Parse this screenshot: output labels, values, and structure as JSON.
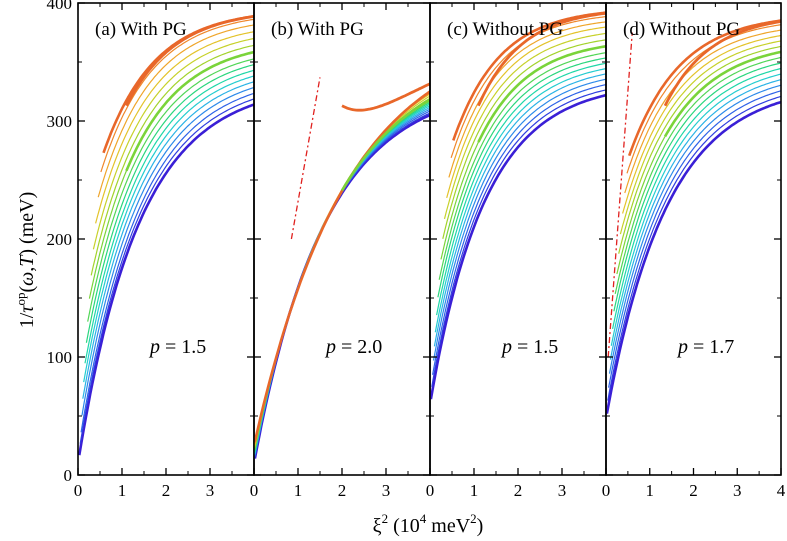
{
  "chart_data": {
    "type": "line",
    "xlabel": "ξ² (10⁴ meV²)",
    "ylabel": "1/τ^op(ω,T) (meV)",
    "xlabel_parts": {
      "base": "ξ",
      "sup": "2",
      "rest": " (10",
      "sup2": "4",
      "rest2": " meV",
      "sup3": "2",
      "end": ")"
    },
    "ylabel_parts": {
      "a": "1/",
      "tau": "τ",
      "sup": "op",
      "b": "(",
      "omega": "ω",
      "comma": ",",
      "T": "T",
      "c": ") (meV)"
    },
    "ylim": [
      0,
      400
    ],
    "yticks": [
      "0",
      "100",
      "200",
      "300",
      "400"
    ],
    "panels": [
      {
        "id": "a",
        "label": "(a) With PG",
        "param_symbol": "p",
        "param_eq": " = 1.5",
        "xlim": [
          0,
          4
        ],
        "xticks": [
          "0",
          "1",
          "2",
          "3"
        ],
        "offsets": [
          10,
          15,
          20,
          30,
          40,
          50,
          60,
          72,
          85,
          98,
          112,
          128,
          145,
          162,
          180,
          193
        ],
        "plateaus": [
          332,
          336,
          340,
          344,
          348,
          352,
          356,
          360,
          364,
          369,
          374,
          379,
          384,
          389,
          393,
          395
        ],
        "rates": [
          0.72,
          0.73,
          0.74,
          0.75,
          0.76,
          0.77,
          0.78,
          0.79,
          0.8,
          0.81,
          0.82,
          0.83,
          0.84,
          0.85,
          0.86,
          0.87
        ],
        "starts": [
          0.03,
          0.05,
          0.07,
          0.09,
          0.11,
          0.13,
          0.16,
          0.19,
          0.22,
          0.26,
          0.3,
          0.35,
          0.4,
          0.46,
          0.52,
          0.58
        ],
        "bold_start": 1.1,
        "bold_value_at_start": 313,
        "dashdot": null
      },
      {
        "id": "b",
        "label": "(b) With PG",
        "param_symbol": "p",
        "param_eq": " = 2.0",
        "xlim": [
          0,
          4
        ],
        "xticks": [
          "0",
          "1",
          "2",
          "3"
        ],
        "offsets": [
          10,
          11,
          12,
          13,
          14,
          15,
          16,
          17,
          18,
          19,
          20,
          21,
          22,
          23,
          24,
          25
        ],
        "plateaus": [
          332,
          335,
          338,
          341,
          344,
          347,
          350,
          353,
          356,
          359,
          362,
          366,
          370,
          373,
          376,
          379
        ],
        "rates": [
          0.62,
          0.61,
          0.6,
          0.59,
          0.58,
          0.57,
          0.56,
          0.55,
          0.54,
          0.53,
          0.52,
          0.51,
          0.5,
          0.49,
          0.48,
          0.47
        ],
        "starts": [
          0.02,
          0.02,
          0.02,
          0.02,
          0.02,
          0.02,
          0.02,
          0.02,
          0.02,
          0.02,
          0.02,
          0.02,
          0.02,
          0.02,
          0.02,
          0.02
        ],
        "bold_start": 2.0,
        "bold_value_at_start": 313,
        "dashdot": {
          "x": [
            0.85,
            1.5
          ],
          "y": [
            200,
            337
          ]
        }
      },
      {
        "id": "c",
        "label": "(c) Without PG",
        "param_symbol": "p",
        "param_eq": " = 1.5",
        "xlim": [
          0,
          4
        ],
        "xticks": [
          "0",
          "1",
          "2",
          "3"
        ],
        "offsets": [
          60,
          66,
          72,
          80,
          88,
          96,
          105,
          115,
          125,
          136,
          148,
          160,
          172,
          185,
          198,
          210
        ],
        "plateaus": [
          333,
          337,
          341,
          345,
          349,
          353,
          357,
          361,
          365,
          370,
          375,
          380,
          385,
          389,
          393,
          396
        ],
        "rates": [
          0.8,
          0.81,
          0.82,
          0.83,
          0.84,
          0.85,
          0.86,
          0.87,
          0.88,
          0.89,
          0.9,
          0.91,
          0.92,
          0.93,
          0.94,
          0.95
        ],
        "starts": [
          0.02,
          0.04,
          0.06,
          0.08,
          0.1,
          0.12,
          0.15,
          0.18,
          0.21,
          0.25,
          0.29,
          0.33,
          0.38,
          0.43,
          0.48,
          0.53
        ],
        "bold_start": 1.1,
        "bold_value_at_start": 313,
        "dashdot": null
      },
      {
        "id": "d",
        "label": "(d) Without PG",
        "param_symbol": "p",
        "param_eq": " = 1.7",
        "xlim": [
          0,
          4
        ],
        "xticks": [
          "0",
          "1",
          "2",
          "3",
          "4"
        ],
        "offsets": [
          48,
          55,
          62,
          70,
          78,
          86,
          95,
          105,
          115,
          126,
          138,
          150,
          162,
          175,
          188,
          200
        ],
        "plateaus": [
          332,
          336,
          340,
          344,
          348,
          352,
          356,
          360,
          364,
          368,
          372,
          376,
          380,
          384,
          388,
          391
        ],
        "rates": [
          0.72,
          0.73,
          0.74,
          0.75,
          0.76,
          0.77,
          0.78,
          0.79,
          0.8,
          0.81,
          0.82,
          0.83,
          0.84,
          0.85,
          0.86,
          0.87
        ],
        "starts": [
          0.02,
          0.04,
          0.06,
          0.08,
          0.1,
          0.12,
          0.15,
          0.18,
          0.21,
          0.25,
          0.29,
          0.33,
          0.38,
          0.43,
          0.48,
          0.53
        ],
        "bold_start": 1.35,
        "bold_value_at_start": 313,
        "dashdot": {
          "x": [
            0.05,
            0.6
          ],
          "y": [
            100,
            375
          ]
        }
      }
    ],
    "colors": [
      "#3a1fd6",
      "#2f3fe0",
      "#2e63e8",
      "#2d8aea",
      "#2ab3e6",
      "#24cdd0",
      "#1fd7a8",
      "#2ad67e",
      "#52d657",
      "#7ad43a",
      "#a3d32c",
      "#c7d12a",
      "#e3c32a",
      "#efa52a",
      "#ef872a",
      "#e8672a"
    ],
    "dashdot_color": "#e0201e"
  }
}
